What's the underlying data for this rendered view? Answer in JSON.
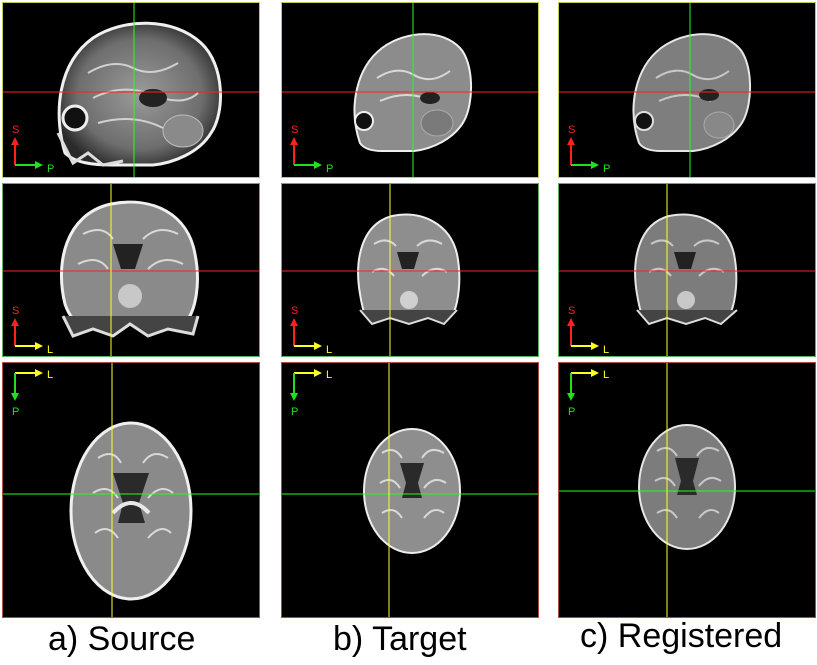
{
  "columns": [
    {
      "id": "source",
      "caption": "a) Source"
    },
    {
      "id": "target",
      "caption": "b) Target"
    },
    {
      "id": "registered",
      "caption": "c) Registered"
    }
  ],
  "orientation_labels": {
    "sagittal": {
      "vertical": "S",
      "horizontal": "P"
    },
    "coronal": {
      "vertical": "S",
      "horizontal": "L"
    },
    "axial": {
      "horizontal": "L",
      "vertical": "P"
    }
  },
  "colors": {
    "sagittal_border": "#c8c850",
    "coronal_border": "#60b060",
    "axial_border": "#b04848",
    "crosshair_red": "#ff2020",
    "crosshair_green": "#20ff20",
    "crosshair_yellow": "#ffff30",
    "arrow_red": "#ff2020",
    "arrow_green": "#20e020",
    "arrow_yellow": "#ffff20"
  }
}
